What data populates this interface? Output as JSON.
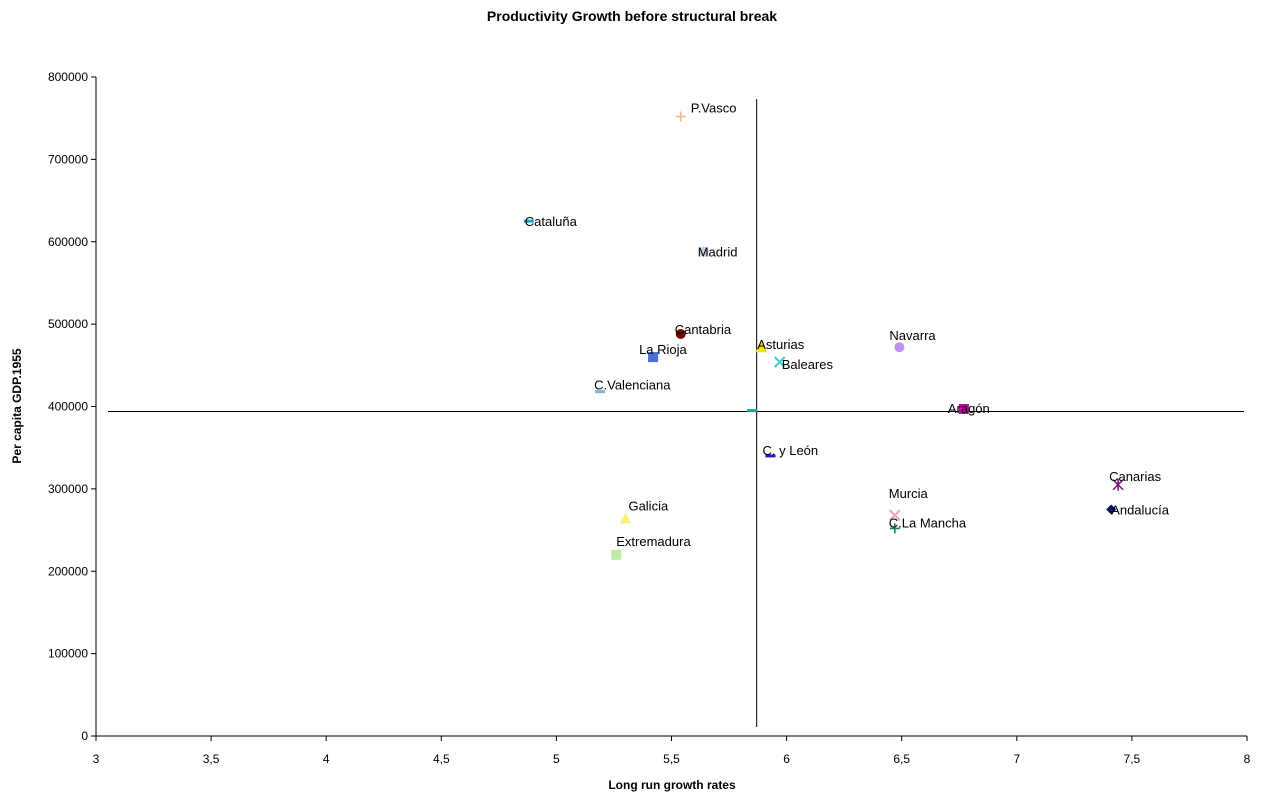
{
  "chart_data": {
    "type": "scatter",
    "title": "Productivity Growth before structural break",
    "xlabel": "Long run growth rates",
    "ylabel": "Per capita GDP.1955",
    "xlim": [
      3,
      8
    ],
    "ylim": [
      0,
      800000
    ],
    "x_ticks": [
      "3",
      "3,5",
      "4",
      "4,5",
      "5",
      "5,5",
      "6",
      "6,5",
      "7",
      "7,5",
      "8"
    ],
    "y_ticks": [
      "0",
      "100000",
      "200000",
      "300000",
      "400000",
      "500000",
      "600000",
      "700000",
      "800000"
    ],
    "grid": false,
    "reference_lines": {
      "vertical_x": 5.87,
      "horizontal_y": 394000
    },
    "points": [
      {
        "label": "P.Vasco",
        "x": 5.54,
        "y": 752000,
        "marker": "plus",
        "color": "#f5b77e"
      },
      {
        "label": "Cataluña",
        "x": 4.88,
        "y": 625000,
        "marker": "dash",
        "color": "#1aa3c3"
      },
      {
        "label": "Madrid",
        "x": 5.64,
        "y": 588000,
        "marker": "circle",
        "color": "#c0d4e8"
      },
      {
        "label": "Cantabria",
        "x": 5.54,
        "y": 488000,
        "marker": "circle",
        "color": "#7a0000"
      },
      {
        "label": "Asturias",
        "x": 5.89,
        "y": 472000,
        "marker": "triangle",
        "color": "#f0e21a"
      },
      {
        "label": "La Rioja",
        "x": 5.42,
        "y": 460000,
        "marker": "square",
        "color": "#4c6fd6"
      },
      {
        "label": "Baleares",
        "x": 5.97,
        "y": 454000,
        "marker": "x",
        "color": "#3ad0d0"
      },
      {
        "label": "Navarra",
        "x": 6.49,
        "y": 472000,
        "marker": "circle",
        "color": "#c290f0"
      },
      {
        "label": "C.Valenciana",
        "x": 5.19,
        "y": 418000,
        "marker": "dash",
        "color": "#7fb0d9"
      },
      {
        "label": "",
        "x": 5.85,
        "y": 395000,
        "marker": "dash",
        "color": "#20a0a0"
      },
      {
        "label": "Aragón",
        "x": 6.77,
        "y": 397000,
        "marker": "square",
        "color": "#c400a0"
      },
      {
        "label": "C. y León",
        "x": 5.93,
        "y": 340000,
        "marker": "dash",
        "color": "#1a1acc"
      },
      {
        "label": "Canarias",
        "x": 7.44,
        "y": 305000,
        "marker": "asterisk",
        "color": "#7a107a"
      },
      {
        "label": "Andalucía",
        "x": 7.41,
        "y": 275000,
        "marker": "diamond",
        "color": "#0a0a70"
      },
      {
        "label": "Murcia",
        "x": 6.47,
        "y": 268000,
        "marker": "x",
        "color": "#f0a0c0"
      },
      {
        "label": "C.La Mancha",
        "x": 6.47,
        "y": 252000,
        "marker": "plus",
        "color": "#1a7a6a"
      },
      {
        "label": "Galicia",
        "x": 5.3,
        "y": 264000,
        "marker": "triangle",
        "color": "#f7f27a"
      },
      {
        "label": "Extremadura",
        "x": 5.26,
        "y": 220000,
        "marker": "square",
        "color": "#bfeaa6"
      }
    ]
  }
}
